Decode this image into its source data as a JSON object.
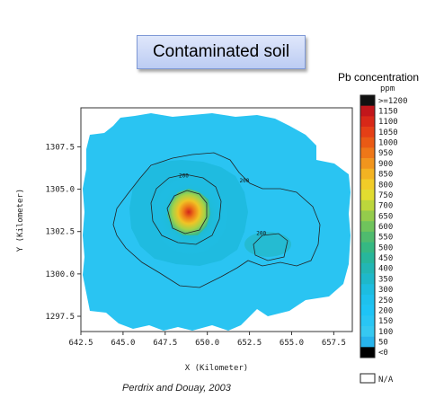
{
  "slide_title": "Contaminated soil",
  "legend_title": "Pb concentration",
  "citation": "Perdrix and Douay, 2003",
  "chart_data": {
    "type": "heatmap",
    "xlabel": "X (Kilometer)",
    "ylabel": "Y (Kilometer)",
    "xlim": [
      642.5,
      658.6
    ],
    "ylim": [
      1296.6,
      1309.8
    ],
    "x_ticks": [
      "642.5",
      "645.0",
      "647.5",
      "650.0",
      "652.5",
      "655.0",
      "657.5"
    ],
    "y_ticks": [
      "1297.5",
      "1300.0",
      "1302.5",
      "1305.0",
      "1307.5"
    ],
    "x_tick_values": [
      642.5,
      645.0,
      647.5,
      650.0,
      652.5,
      655.0,
      657.5
    ],
    "y_tick_values": [
      1297.5,
      1300.0,
      1302.5,
      1305.0,
      1307.5
    ],
    "contour_labels": [
      {
        "text": "200",
        "x": 648.6,
        "y": 1305.7
      },
      {
        "text": "200",
        "x": 652.2,
        "y": 1305.4
      },
      {
        "text": "200",
        "x": 653.2,
        "y": 1302.3
      }
    ],
    "scale": {
      "unit": "ppm",
      "labels": [
        ">=1200",
        "1150",
        "1100",
        "1050",
        "1000",
        "950",
        "900",
        "850",
        "800",
        "750",
        "700",
        "650",
        "600",
        "550",
        "500",
        "450",
        "400",
        "350",
        "300",
        "250",
        "200",
        "150",
        "100",
        "50",
        "<0"
      ],
      "colors": [
        "#111111",
        "#c2161b",
        "#d82818",
        "#e53f16",
        "#ea5a15",
        "#ee7718",
        "#f1951d",
        "#f3b322",
        "#f1cc28",
        "#e1dc30",
        "#bcd63c",
        "#94cc4c",
        "#6fc45c",
        "#4fbb6e",
        "#35b882",
        "#27b69b",
        "#22b6b4",
        "#1eb8ca",
        "#1dbde0",
        "#1ec1ee",
        "#1ec4f6",
        "#29c6f4",
        "#36c9f1",
        "#27b4ec",
        "#000000"
      ],
      "na_label": "N/A"
    }
  }
}
